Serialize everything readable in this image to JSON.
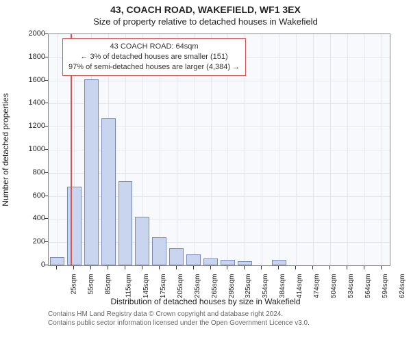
{
  "title_main": "43, COACH ROAD, WAKEFIELD, WF1 3EX",
  "title_sub": "Size of property relative to detached houses in Wakefield",
  "chart": {
    "type": "histogram",
    "background_color": "#f8f9fc",
    "plot_border_color": "#888888",
    "grid_color": "#e4e6ec",
    "bar_fill": "#c9d4ef",
    "bar_border": "#7a8ab8",
    "marker_color": "#d9534f",
    "annotation_border": "#d9534f",
    "ylabel": "Number of detached properties",
    "xlabel": "Distribution of detached houses by size in Wakefield",
    "ylim_min": 0,
    "ylim_max": 2000,
    "ytick_step": 200,
    "marker_value": 64,
    "annotation": {
      "line1": "43 COACH ROAD: 64sqm",
      "line2": "← 3% of detached houses are smaller (151)",
      "line3": "97% of semi-detached houses are larger (4,384) →"
    },
    "categories": [
      "25sqm",
      "55sqm",
      "85sqm",
      "115sqm",
      "145sqm",
      "175sqm",
      "205sqm",
      "235sqm",
      "265sqm",
      "295sqm",
      "325sqm",
      "354sqm",
      "384sqm",
      "414sqm",
      "474sqm",
      "504sqm",
      "534sqm",
      "564sqm",
      "594sqm",
      "624sqm"
    ],
    "values": [
      70,
      680,
      1610,
      1270,
      730,
      420,
      240,
      150,
      95,
      60,
      50,
      35,
      0,
      45,
      0,
      0,
      0,
      0,
      0,
      0
    ]
  },
  "footer_line1": "Contains HM Land Registry data © Crown copyright and database right 2024.",
  "footer_line2": "Contains public sector information licensed under the Open Government Licence v3.0."
}
